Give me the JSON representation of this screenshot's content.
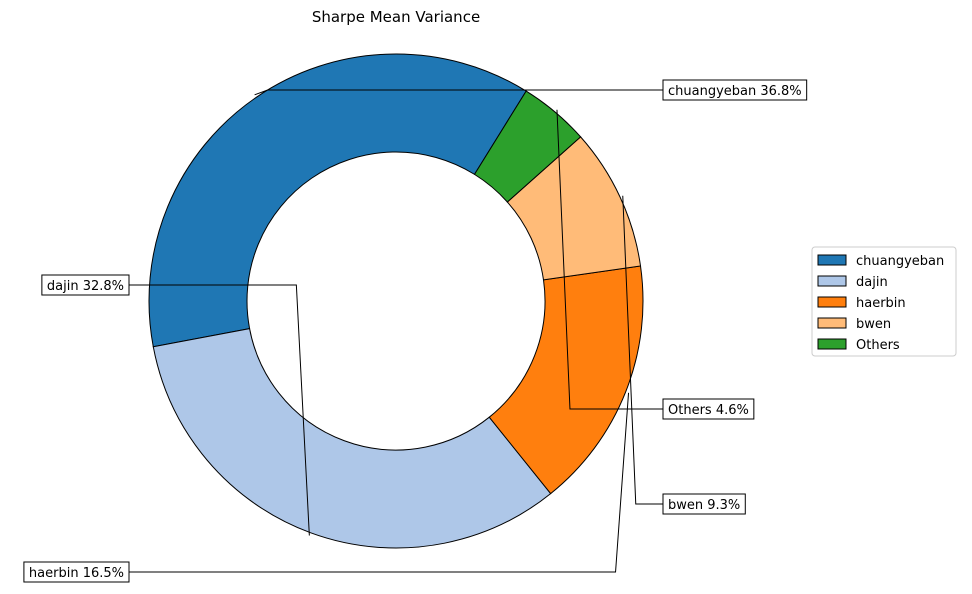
{
  "chart_data": {
    "type": "pie",
    "variant": "donut",
    "title": "Sharpe Mean Variance",
    "legend_position": "right",
    "slices": [
      {
        "name": "chuangyeban",
        "value": 36.8,
        "label": "chuangyeban 36.8%",
        "color": "#1f77b4"
      },
      {
        "name": "dajin",
        "value": 32.8,
        "label": "dajin 32.8%",
        "color": "#aec7e8"
      },
      {
        "name": "haerbin",
        "value": 16.5,
        "label": "haerbin 16.5%",
        "color": "#ff7f0e"
      },
      {
        "name": "bwen",
        "value": 9.3,
        "label": "bwen 9.3%",
        "color": "#ffbb78"
      },
      {
        "name": "Others",
        "value": 4.6,
        "label": "Others 4.6%",
        "color": "#2ca02c"
      }
    ]
  }
}
